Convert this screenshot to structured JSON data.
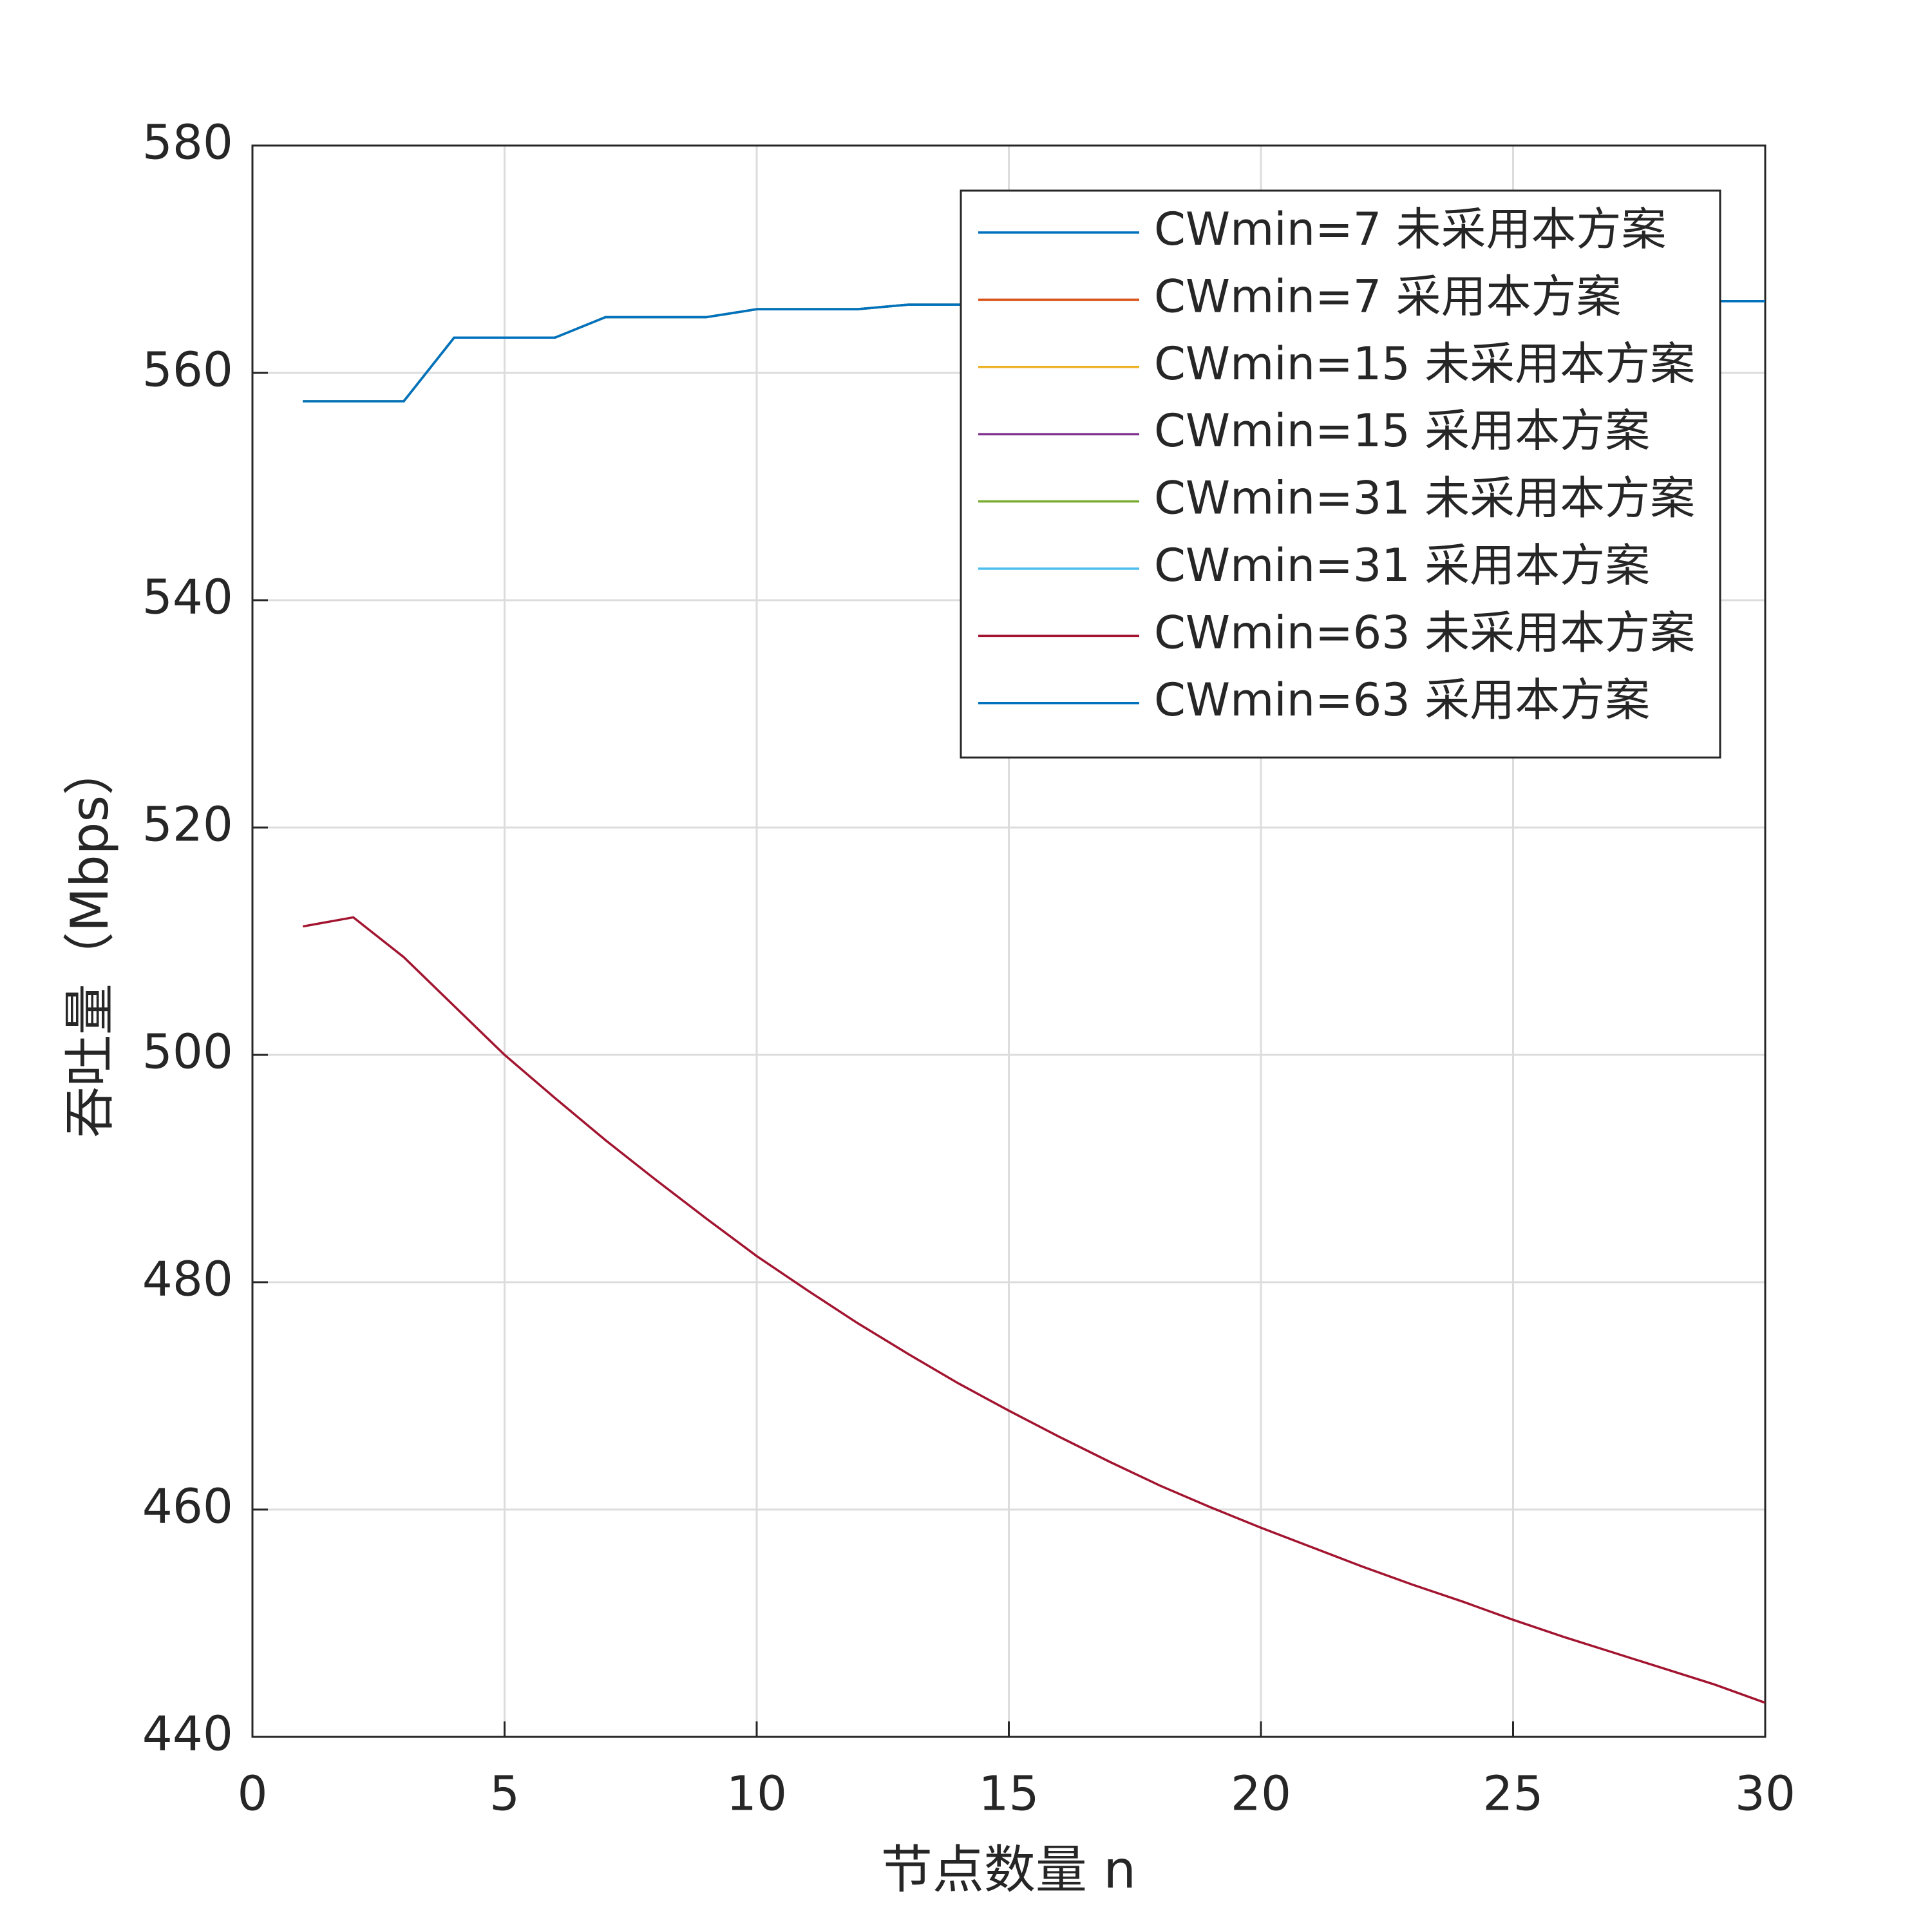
{
  "chart_data": {
    "type": "line",
    "xlabel": "节点数量 n",
    "ylabel": "吞吐量（Mbps）",
    "x": [
      1,
      2,
      3,
      4,
      5,
      6,
      7,
      8,
      9,
      10,
      11,
      12,
      13,
      14,
      15,
      16,
      17,
      18,
      19,
      20,
      21,
      22,
      23,
      24,
      25,
      26,
      27,
      28,
      29,
      30
    ],
    "series": [
      {
        "name": "CWmin=7 未采用本方案",
        "color": "#0072BD",
        "values": [
          557.5,
          557.5,
          557.5,
          563.1,
          563.1,
          563.1,
          564.9,
          564.9,
          564.9,
          565.6,
          565.6,
          565.6,
          566.0,
          566.0,
          566.0,
          566.0,
          566.0,
          566.0,
          566.3,
          566.3,
          566.3,
          566.3,
          566.3,
          566.3,
          566.3,
          566.3,
          566.3,
          566.3,
          566.3,
          566.3
        ]
      },
      {
        "name": "CWmin=7 采用本方案",
        "color": "#D95319",
        "values": [
          557.5,
          557.5,
          557.5,
          563.1,
          563.1,
          563.1,
          564.9,
          564.9,
          564.9,
          565.6,
          565.6,
          565.6,
          566.0,
          566.0,
          566.0,
          566.0,
          566.0,
          566.0,
          566.3,
          566.3,
          566.3,
          566.3,
          566.3,
          566.3,
          566.3,
          566.3,
          566.3,
          566.3,
          566.3,
          566.3
        ]
      },
      {
        "name": "CWmin=15 未采用本方案",
        "color": "#EDB120",
        "values": [
          557.5,
          557.5,
          557.5,
          563.1,
          563.1,
          563.1,
          564.9,
          564.9,
          564.9,
          565.6,
          565.6,
          565.6,
          566.0,
          566.0,
          566.0,
          566.0,
          566.0,
          566.0,
          566.3,
          566.3,
          566.3,
          566.3,
          566.3,
          566.3,
          566.3,
          566.3,
          566.3,
          566.3,
          566.3,
          566.3
        ]
      },
      {
        "name": "CWmin=15 采用本方案",
        "color": "#7E2F8E",
        "values": [
          557.5,
          557.5,
          557.5,
          563.1,
          563.1,
          563.1,
          564.9,
          564.9,
          564.9,
          565.6,
          565.6,
          565.6,
          566.0,
          566.0,
          566.0,
          566.0,
          566.0,
          566.0,
          566.3,
          566.3,
          566.3,
          566.3,
          566.3,
          566.3,
          566.3,
          566.3,
          566.3,
          566.3,
          566.3,
          566.3
        ]
      },
      {
        "name": "CWmin=31 未采用本方案",
        "color": "#77AC30",
        "values": [
          557.5,
          557.5,
          557.5,
          563.1,
          563.1,
          563.1,
          564.9,
          564.9,
          564.9,
          565.6,
          565.6,
          565.6,
          566.0,
          566.0,
          566.0,
          566.0,
          566.0,
          566.0,
          566.3,
          566.3,
          566.3,
          566.3,
          566.3,
          566.3,
          566.3,
          566.3,
          566.3,
          566.3,
          566.3,
          566.3
        ]
      },
      {
        "name": "CWmin=31 采用本方案",
        "color": "#4DBEEE",
        "values": [
          557.5,
          557.5,
          557.5,
          563.1,
          563.1,
          563.1,
          564.9,
          564.9,
          564.9,
          565.6,
          565.6,
          565.6,
          566.0,
          566.0,
          566.0,
          566.0,
          566.0,
          566.0,
          566.3,
          566.3,
          566.3,
          566.3,
          566.3,
          566.3,
          566.3,
          566.3,
          566.3,
          566.3,
          566.3,
          566.3
        ]
      },
      {
        "name": "CWmin=63 未采用本方案",
        "color": "#A2142F",
        "values": [
          511.3,
          512.1,
          508.6,
          504.3,
          500.0,
          496.2,
          492.5,
          489.0,
          485.6,
          482.3,
          479.3,
          476.4,
          473.7,
          471.1,
          468.7,
          466.4,
          464.2,
          462.1,
          460.2,
          458.4,
          456.7,
          455.0,
          453.4,
          451.9,
          450.3,
          448.8,
          447.4,
          446.0,
          444.6,
          443.0
        ]
      },
      {
        "name": "CWmin=63 采用本方案",
        "color": "#0072BD",
        "values": [
          557.5,
          557.5,
          557.5,
          563.1,
          563.1,
          563.1,
          564.9,
          564.9,
          564.9,
          565.6,
          565.6,
          565.6,
          566.0,
          566.0,
          566.0,
          566.0,
          566.0,
          566.0,
          566.3,
          566.3,
          566.3,
          566.3,
          566.3,
          566.3,
          566.3,
          566.3,
          566.3,
          566.3,
          566.3,
          566.3
        ]
      }
    ],
    "xlim": [
      0,
      30
    ],
    "xticks": [
      0,
      5,
      10,
      15,
      20,
      25,
      30
    ],
    "ylim": [
      440,
      580
    ],
    "yticks": [
      440,
      460,
      480,
      500,
      520,
      540,
      560,
      580
    ],
    "grid": true,
    "legend": "upper right"
  }
}
